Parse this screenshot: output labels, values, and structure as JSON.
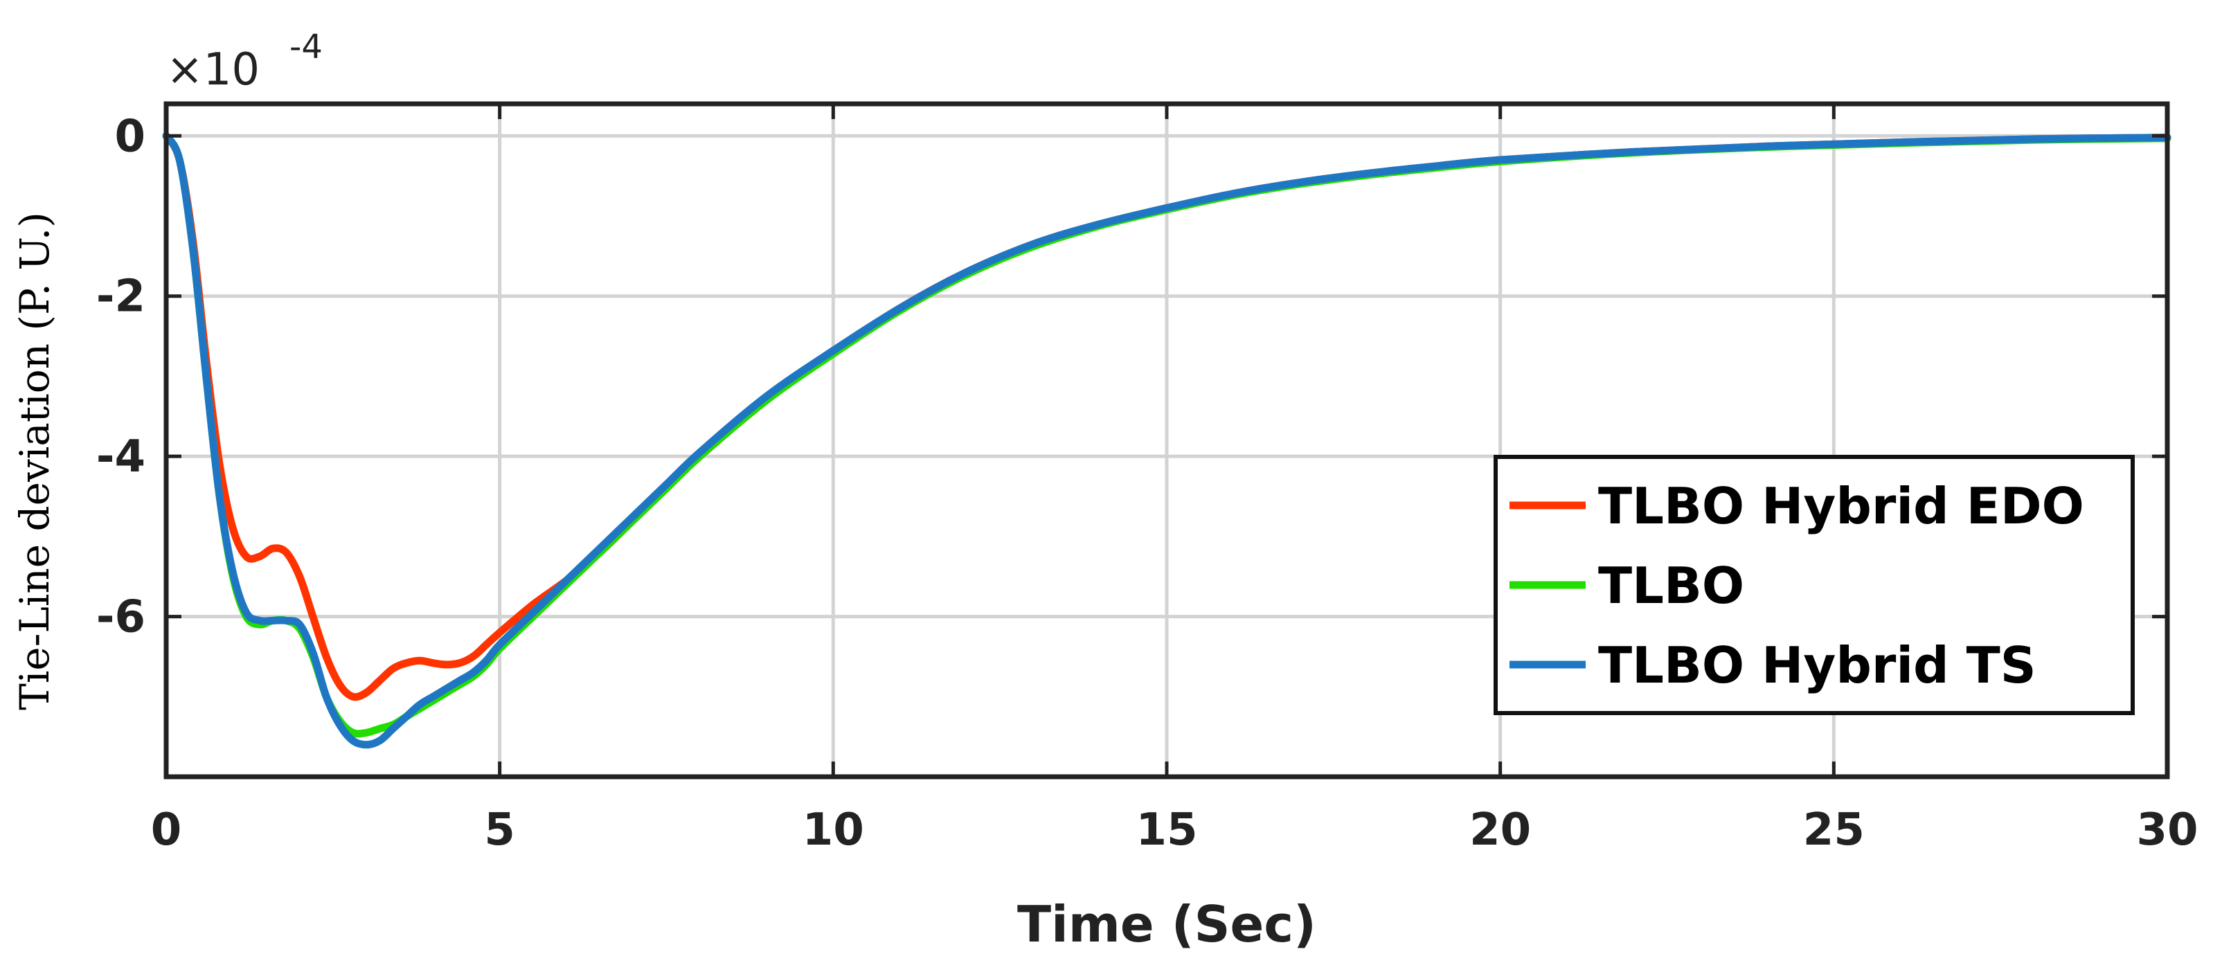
{
  "chart_data": {
    "type": "line",
    "xlabel": "Time (Sec)",
    "ylabel": "Tie-Line deviation (P. U.)",
    "y_exponent_prefix": "×10",
    "y_exponent_power": "-4",
    "xlim": [
      0,
      30
    ],
    "ylim": [
      -8,
      0.4
    ],
    "xticks": [
      0,
      5,
      10,
      15,
      20,
      25,
      30
    ],
    "xtick_labels": [
      "0",
      "5",
      "10",
      "15",
      "20",
      "25",
      "30"
    ],
    "yticks": [
      0,
      -2,
      -4,
      -6
    ],
    "ytick_labels": [
      "0",
      "-2",
      "-4",
      "-6"
    ],
    "grid": true,
    "legend_position": "right, middle",
    "series": [
      {
        "name": "TLBO Hybrid EDO",
        "color": "#ff3300",
        "x": [
          0,
          0.2,
          0.4,
          0.6,
          0.8,
          1.0,
          1.2,
          1.4,
          1.6,
          1.8,
          2.0,
          2.2,
          2.4,
          2.6,
          2.8,
          3.0,
          3.2,
          3.4,
          3.6,
          3.8,
          4.0,
          4.2,
          4.4,
          4.6,
          4.8,
          5.0,
          5.5,
          6,
          6.5,
          7,
          7.5,
          8,
          9,
          10,
          11,
          12,
          13,
          14,
          15,
          16,
          17,
          18,
          19,
          20,
          22,
          24,
          26,
          28,
          30
        ],
        "y": [
          0,
          -0.3,
          -1.3,
          -2.8,
          -4.1,
          -4.9,
          -5.25,
          -5.25,
          -5.15,
          -5.2,
          -5.5,
          -6.0,
          -6.5,
          -6.85,
          -7.0,
          -6.95,
          -6.8,
          -6.65,
          -6.58,
          -6.55,
          -6.58,
          -6.6,
          -6.58,
          -6.5,
          -6.35,
          -6.2,
          -5.85,
          -5.55,
          -5.2,
          -4.8,
          -4.4,
          -4.0,
          -3.3,
          -2.7,
          -2.15,
          -1.7,
          -1.35,
          -1.1,
          -0.9,
          -0.72,
          -0.58,
          -0.47,
          -0.38,
          -0.3,
          -0.2,
          -0.13,
          -0.08,
          -0.04,
          -0.02
        ]
      },
      {
        "name": "TLBO",
        "color": "#22dd00",
        "x": [
          0,
          0.2,
          0.4,
          0.6,
          0.8,
          1.0,
          1.2,
          1.4,
          1.6,
          1.8,
          2.0,
          2.2,
          2.4,
          2.6,
          2.8,
          3.0,
          3.2,
          3.4,
          3.6,
          3.8,
          4.0,
          4.2,
          4.4,
          4.6,
          4.8,
          5.0,
          5.5,
          6,
          6.5,
          7,
          7.5,
          8,
          9,
          10,
          11,
          12,
          13,
          14,
          15,
          16,
          17,
          18,
          19,
          20,
          22,
          24,
          26,
          28,
          30
        ],
        "y": [
          0,
          -0.3,
          -1.4,
          -3.0,
          -4.5,
          -5.5,
          -6.0,
          -6.1,
          -6.05,
          -6.05,
          -6.15,
          -6.5,
          -7.0,
          -7.3,
          -7.45,
          -7.45,
          -7.4,
          -7.35,
          -7.25,
          -7.15,
          -7.05,
          -6.95,
          -6.85,
          -6.75,
          -6.6,
          -6.4,
          -6.0,
          -5.6,
          -5.2,
          -4.8,
          -4.4,
          -4.0,
          -3.3,
          -2.72,
          -2.18,
          -1.73,
          -1.38,
          -1.12,
          -0.92,
          -0.74,
          -0.6,
          -0.49,
          -0.4,
          -0.32,
          -0.21,
          -0.14,
          -0.09,
          -0.05,
          -0.03
        ]
      },
      {
        "name": "TLBO Hybrid TS",
        "color": "#1f77c4",
        "x": [
          0,
          0.2,
          0.4,
          0.6,
          0.8,
          1.0,
          1.2,
          1.4,
          1.6,
          1.8,
          2.0,
          2.2,
          2.4,
          2.6,
          2.8,
          3.0,
          3.2,
          3.4,
          3.6,
          3.8,
          4.0,
          4.2,
          4.4,
          4.6,
          4.8,
          5.0,
          5.5,
          6,
          6.5,
          7,
          7.5,
          8,
          9,
          10,
          11,
          12,
          13,
          14,
          15,
          16,
          17,
          18,
          19,
          20,
          22,
          24,
          26,
          28,
          30
        ],
        "y": [
          0,
          -0.3,
          -1.4,
          -3.0,
          -4.5,
          -5.45,
          -5.95,
          -6.05,
          -6.05,
          -6.05,
          -6.1,
          -6.45,
          -7.0,
          -7.35,
          -7.55,
          -7.6,
          -7.55,
          -7.4,
          -7.25,
          -7.1,
          -7.0,
          -6.9,
          -6.8,
          -6.7,
          -6.55,
          -6.35,
          -5.95,
          -5.55,
          -5.15,
          -4.75,
          -4.35,
          -3.95,
          -3.25,
          -2.68,
          -2.15,
          -1.7,
          -1.35,
          -1.1,
          -0.9,
          -0.72,
          -0.58,
          -0.47,
          -0.38,
          -0.3,
          -0.2,
          -0.13,
          -0.08,
          -0.04,
          -0.02
        ]
      }
    ]
  }
}
